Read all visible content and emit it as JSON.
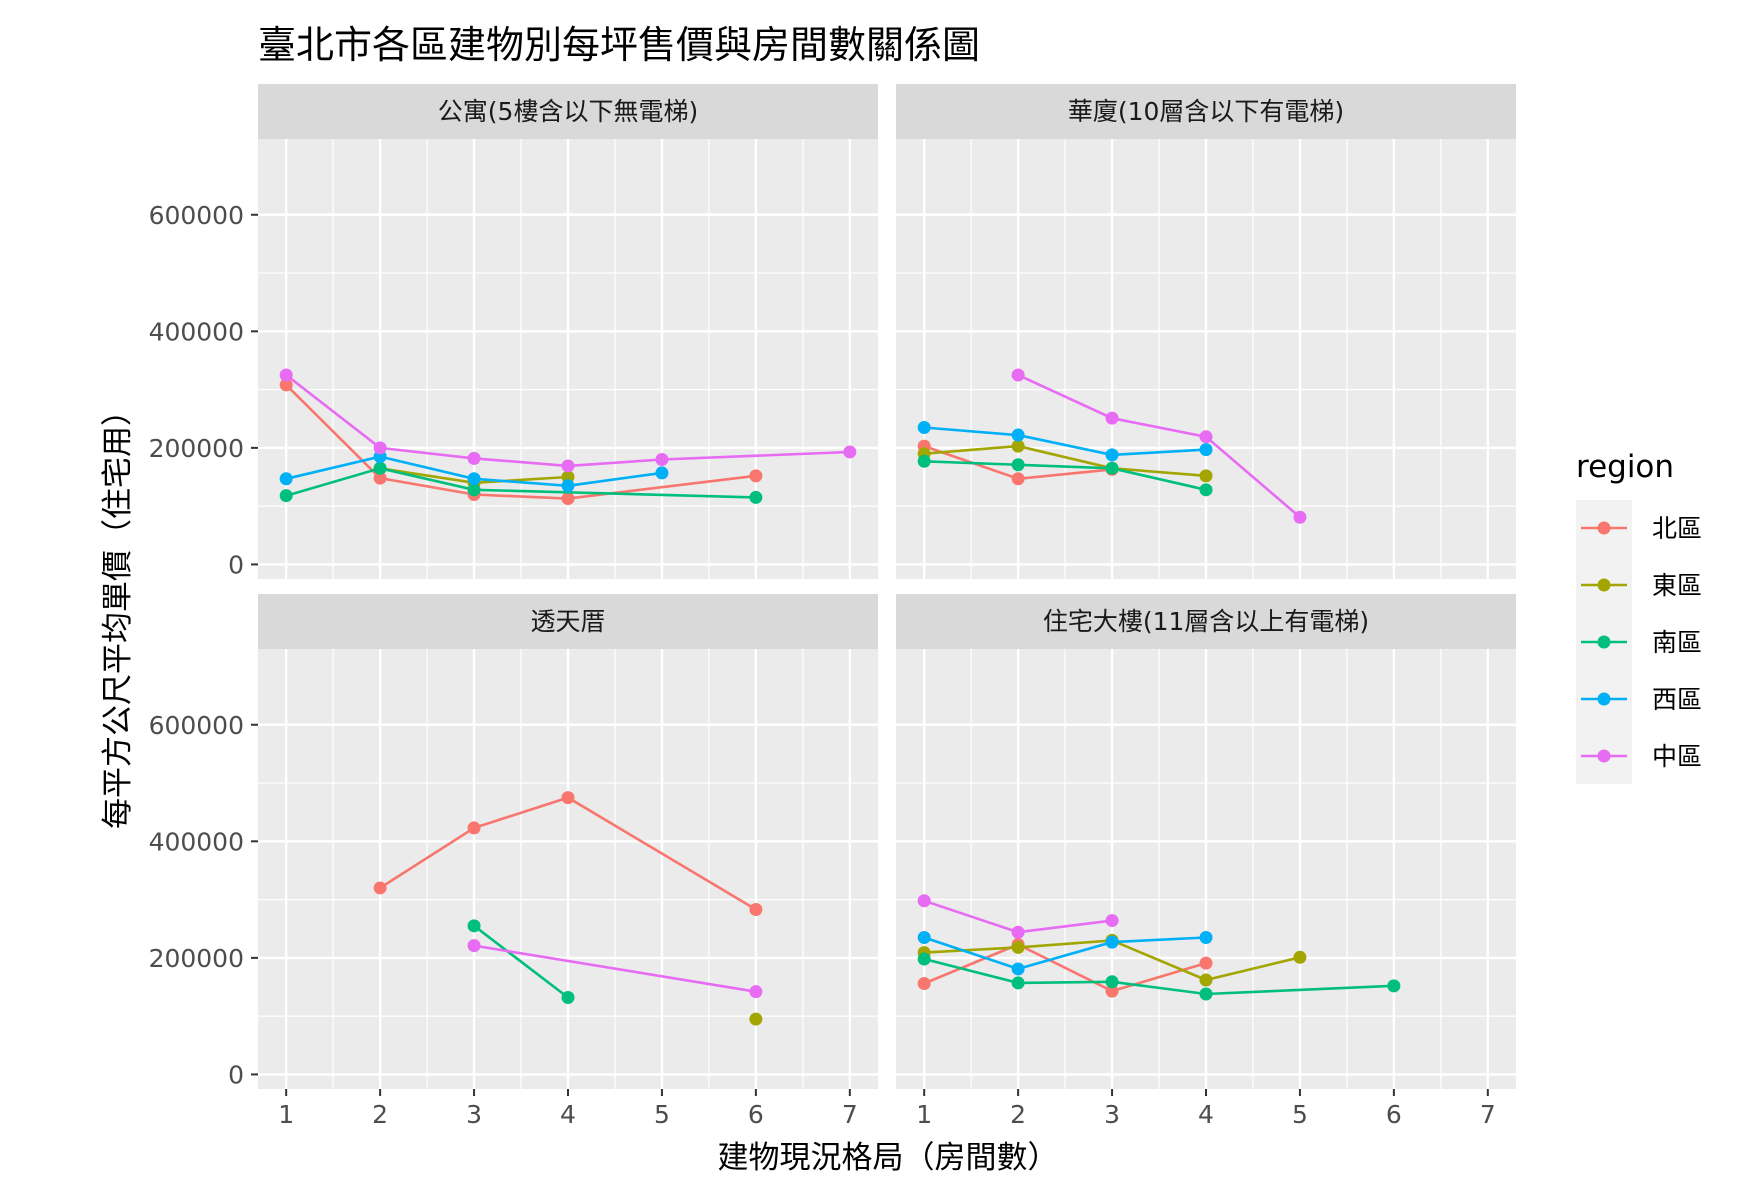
{
  "chart_data": {
    "type": "line",
    "title": "臺北市各區建物別每坪售價與房間數關係圖",
    "xlabel": "建物現況格局（房間數）",
    "ylabel": "每平方公尺平均單價（住宅用）",
    "x_ticks": [
      1,
      2,
      3,
      4,
      5,
      6,
      7
    ],
    "y_ticks": [
      0,
      200000,
      400000,
      600000
    ],
    "y_tick_labels": [
      "0",
      "200000",
      "400000",
      "600000"
    ],
    "xlim": [
      0.7,
      7.3
    ],
    "ylim": [
      -25000,
      730000
    ],
    "grid": true,
    "legend": {
      "title": "region",
      "position": "right",
      "entries": [
        "北區",
        "東區",
        "南區",
        "西區",
        "中區"
      ]
    },
    "series_colors": {
      "北區": "#F8766D",
      "東區": "#A3A500",
      "南區": "#00BF7D",
      "西區": "#00B0F6",
      "中區": "#E76BF3"
    },
    "panels": [
      {
        "title": "公寓(5樓含以下無電梯)",
        "series": [
          {
            "name": "北區",
            "x": [
              1,
              2,
              3,
              4,
              6
            ],
            "y": [
              308000,
              148000,
              120000,
              113000,
              152000
            ]
          },
          {
            "name": "東區",
            "x": [
              2,
              3,
              4
            ],
            "y": [
              165000,
              140000,
              150000
            ]
          },
          {
            "name": "南區",
            "x": [
              1,
              2,
              3,
              6
            ],
            "y": [
              118000,
              165000,
              128000,
              115000
            ]
          },
          {
            "name": "西區",
            "x": [
              1,
              2,
              3,
              4,
              5
            ],
            "y": [
              147000,
              185000,
              147000,
              135000,
              157000
            ]
          },
          {
            "name": "中區",
            "x": [
              1,
              2,
              3,
              4,
              5,
              7
            ],
            "y": [
              325000,
              200000,
              182000,
              169000,
              180000,
              193000
            ]
          }
        ]
      },
      {
        "title": "華廈(10層含以下有電梯)",
        "series": [
          {
            "name": "北區",
            "x": [
              1,
              2,
              3
            ],
            "y": [
              203000,
              147000,
              163000
            ]
          },
          {
            "name": "東區",
            "x": [
              1,
              2,
              3,
              4
            ],
            "y": [
              190000,
              203000,
              165000,
              152000
            ]
          },
          {
            "name": "南區",
            "x": [
              1,
              2,
              3,
              4
            ],
            "y": [
              177000,
              171000,
              165000,
              128000
            ]
          },
          {
            "name": "西區",
            "x": [
              1,
              2,
              3,
              4
            ],
            "y": [
              235000,
              222000,
              188000,
              197000
            ]
          },
          {
            "name": "中區",
            "x": [
              2,
              3,
              4,
              5
            ],
            "y": [
              325000,
              251000,
              219000,
              81000
            ]
          }
        ]
      },
      {
        "title": "透天厝",
        "series": [
          {
            "name": "北區",
            "x": [
              2,
              3,
              4,
              6
            ],
            "y": [
              320000,
              423000,
              475000,
              283000
            ]
          },
          {
            "name": "東區",
            "x": [
              6
            ],
            "y": [
              95000
            ]
          },
          {
            "name": "南區",
            "x": [
              3,
              4
            ],
            "y": [
              255000,
              132000
            ]
          },
          {
            "name": "中區",
            "x": [
              3,
              6
            ],
            "y": [
              221000,
              142000
            ]
          }
        ]
      },
      {
        "title": "住宅大樓(11層含以上有電梯)",
        "series": [
          {
            "name": "北區",
            "x": [
              1,
              2,
              3,
              4
            ],
            "y": [
              156000,
              223000,
              143000,
              191000
            ]
          },
          {
            "name": "東區",
            "x": [
              1,
              2,
              3,
              4,
              5
            ],
            "y": [
              209000,
              218000,
              230000,
              162000,
              201000
            ]
          },
          {
            "name": "南區",
            "x": [
              1,
              2,
              3,
              4,
              6
            ],
            "y": [
              198000,
              157000,
              159000,
              138000,
              152000
            ]
          },
          {
            "name": "西區",
            "x": [
              1,
              2,
              3,
              4
            ],
            "y": [
              235000,
              181000,
              227000,
              235000
            ]
          },
          {
            "name": "中區",
            "x": [
              1,
              2,
              3
            ],
            "y": [
              298000,
              244000,
              264000
            ]
          }
        ]
      }
    ]
  }
}
